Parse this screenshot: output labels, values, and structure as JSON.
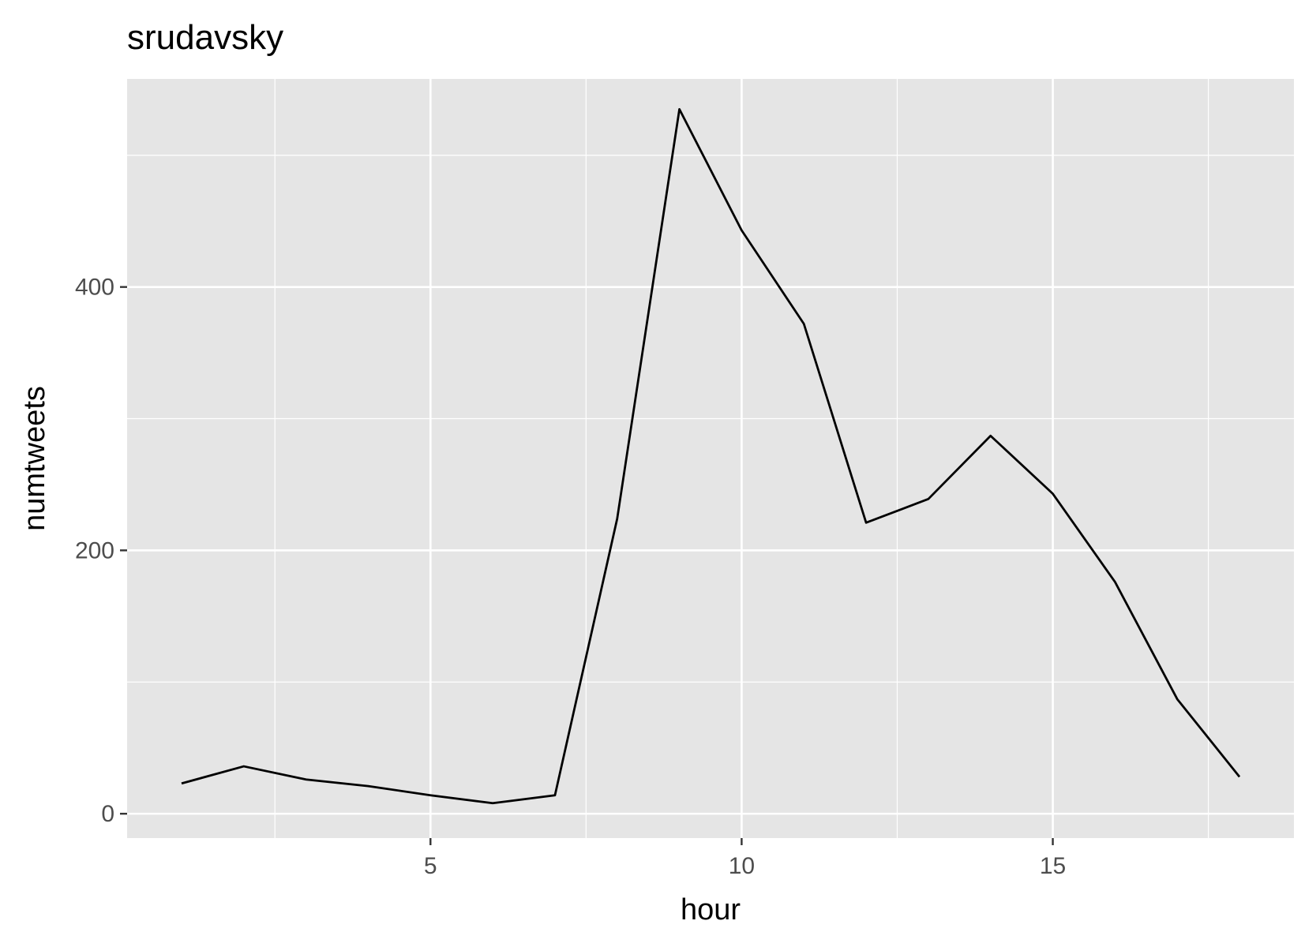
{
  "chart_data": {
    "type": "line",
    "title": "srudavsky",
    "xlabel": "hour",
    "ylabel": "numtweets",
    "x": [
      1,
      2,
      3,
      4,
      5,
      6,
      7,
      8,
      9,
      10,
      11,
      12,
      13,
      14,
      15,
      16,
      17,
      18
    ],
    "series": [
      {
        "values": [
          23,
          36,
          26,
          21,
          14,
          8,
          14,
          224,
          535,
          443,
          372,
          221,
          239,
          287,
          243,
          176,
          87,
          28
        ]
      }
    ],
    "xlim": [
      0.125,
      18.875
    ],
    "ylim": [
      -18.5,
      558
    ],
    "x_ticks": [
      5,
      10,
      15
    ],
    "x_tick_labels": [
      "5",
      "10",
      "15"
    ],
    "x_minor_ticks": [
      2.5,
      7.5,
      12.5,
      17.5
    ],
    "y_ticks": [
      0,
      200,
      400
    ],
    "y_tick_labels": [
      "0",
      "200",
      "400"
    ],
    "y_minor_ticks": [
      100,
      300,
      500
    ],
    "grid": true,
    "legend": "none",
    "colors": {
      "panel_background": "#e5e5e5",
      "grid": "#ffffff",
      "line": "#000000",
      "tick_text": "#4d4d4d",
      "tick_mark": "#333333"
    }
  }
}
